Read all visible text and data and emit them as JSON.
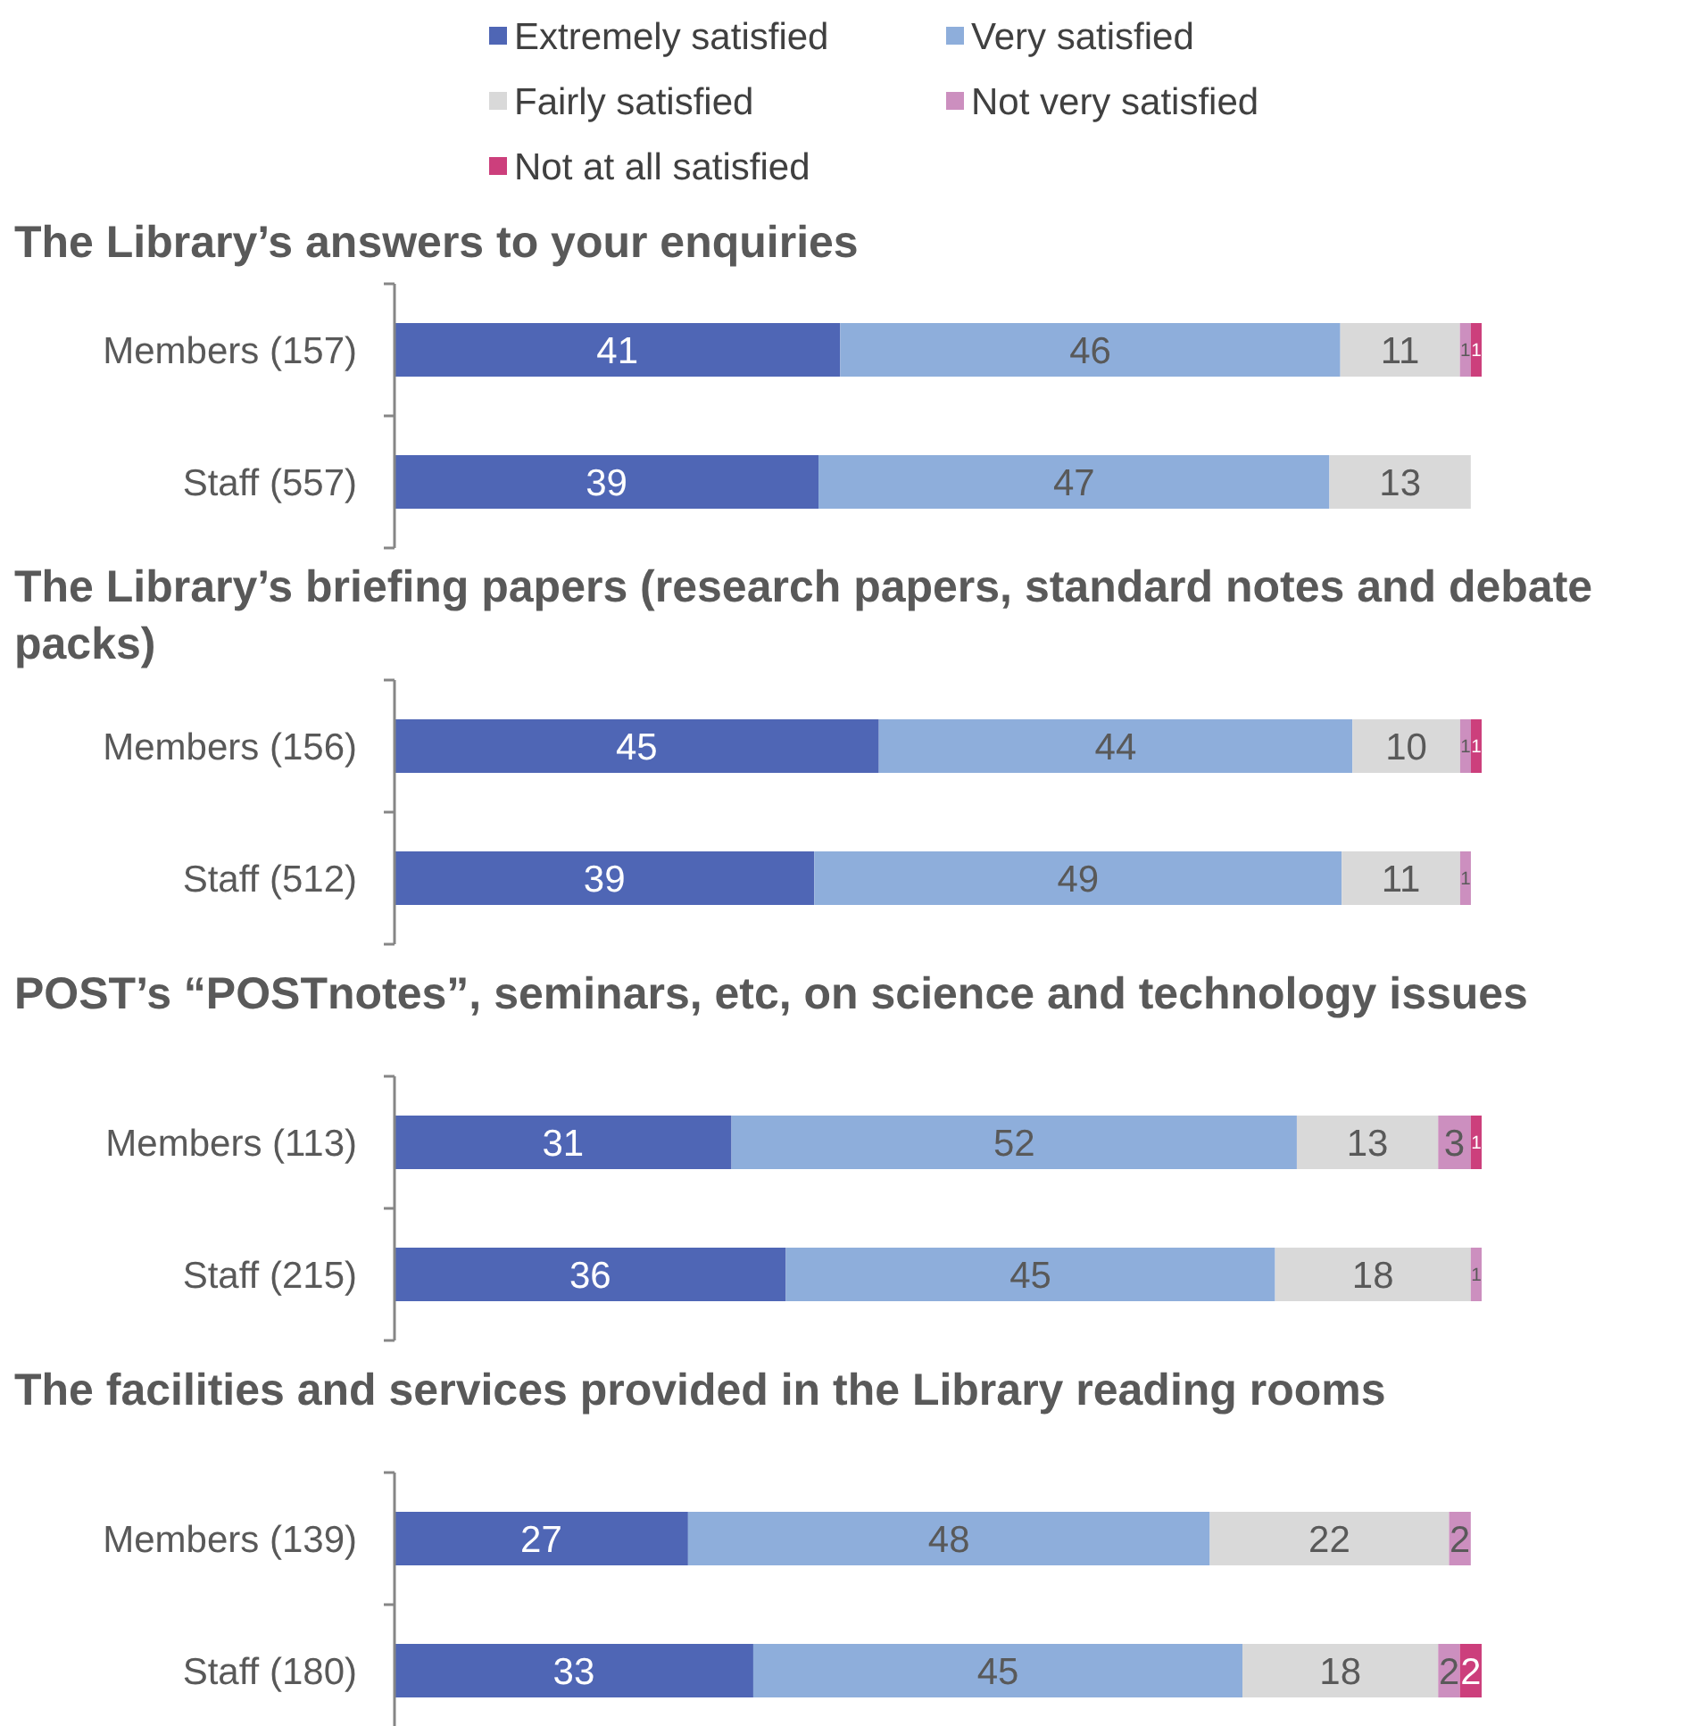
{
  "chart_data": [
    {
      "type": "bar",
      "orientation": "horizontal",
      "stacked": true,
      "title": "The Library’s answers to your enquiries",
      "categories": [
        "Members (157)",
        "Staff (557)"
      ],
      "xlim": [
        0,
        100
      ],
      "tick_labels": "y",
      "data_labels": true,
      "legend": "top",
      "series": [
        {
          "name": "Extremely satisfied",
          "color": "#4f66b5",
          "values": [
            41,
            39
          ]
        },
        {
          "name": "Very satisfied",
          "color": "#8eaedb",
          "values": [
            46,
            47
          ]
        },
        {
          "name": "Fairly satisfied",
          "color": "#d9d9d9",
          "values": [
            11,
            13
          ]
        },
        {
          "name": "Not very satisfied",
          "color": "#cc8fbf",
          "values": [
            1,
            null
          ]
        },
        {
          "name": "Not at all satisfied",
          "color": "#cc3f7c",
          "values": [
            1,
            null
          ]
        }
      ]
    },
    {
      "type": "bar",
      "orientation": "horizontal",
      "stacked": true,
      "title": "The Library’s briefing papers (research papers, standard notes and debate packs)",
      "categories": [
        "Members (156)",
        "Staff (512)"
      ],
      "xlim": [
        0,
        101
      ],
      "tick_labels": "y",
      "data_labels": true,
      "series": [
        {
          "color": "#4f66b5",
          "values": [
            45,
            39
          ]
        },
        {
          "color": "#8eaedb",
          "values": [
            44,
            49
          ]
        },
        {
          "color": "#d9d9d9",
          "values": [
            10,
            11
          ]
        },
        {
          "color": "#cc8fbf",
          "values": [
            1,
            1
          ]
        },
        {
          "color": "#cc3f7c",
          "values": [
            1,
            null
          ]
        }
      ]
    },
    {
      "type": "bar",
      "orientation": "horizontal",
      "stacked": true,
      "title": "POST’s “POSTnotes”, seminars, etc, on science and technology issues",
      "categories": [
        "Members (113)",
        "Staff (215)"
      ],
      "xlim": [
        0,
        100
      ],
      "tick_labels": "y",
      "data_labels": true,
      "series": [
        {
          "color": "#4f66b5",
          "values": [
            31,
            36
          ]
        },
        {
          "color": "#8eaedb",
          "values": [
            52,
            45
          ]
        },
        {
          "color": "#d9d9d9",
          "values": [
            13,
            18
          ]
        },
        {
          "color": "#cc8fbf",
          "values": [
            3,
            1
          ]
        },
        {
          "color": "#cc3f7c",
          "values": [
            1,
            null
          ]
        }
      ]
    },
    {
      "type": "bar",
      "orientation": "horizontal",
      "stacked": true,
      "title": "The facilities and services provided in the Library reading rooms",
      "categories": [
        "Members (139)",
        "Staff (180)"
      ],
      "xlim": [
        0,
        100
      ],
      "tick_labels": "y",
      "data_labels": true,
      "series": [
        {
          "color": "#4f66b5",
          "values": [
            27,
            33
          ]
        },
        {
          "color": "#8eaedb",
          "values": [
            48,
            45
          ]
        },
        {
          "color": "#d9d9d9",
          "values": [
            22,
            18
          ]
        },
        {
          "color": "#cc8fbf",
          "values": [
            2,
            2
          ]
        },
        {
          "color": "#cc3f7c",
          "values": [
            null,
            2
          ]
        }
      ]
    }
  ]
}
